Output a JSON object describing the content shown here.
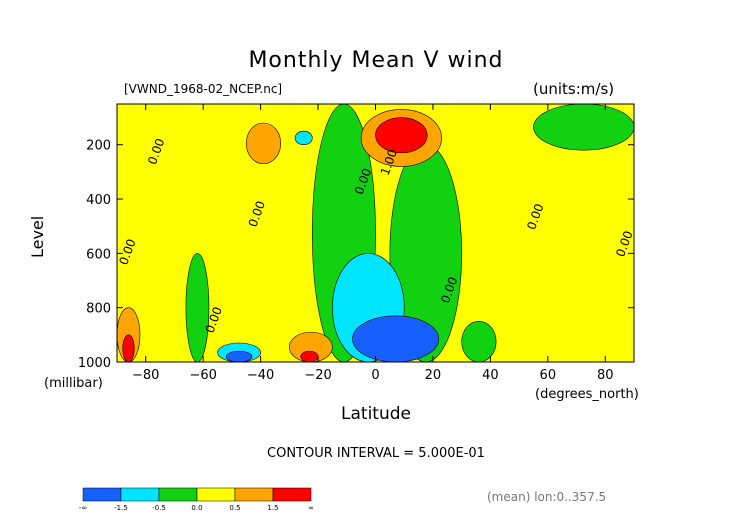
{
  "chart_data": {
    "type": "contour",
    "title": "Monthly Mean V wind",
    "file_label": "[VWND_1968-02_NCEP.nc]",
    "units_label": "(units:m/s)",
    "xlabel": "Latitude",
    "x_units": "(degrees_north)",
    "ylabel": "Level",
    "y_units": "(millibar)",
    "xlim": [
      -90,
      90
    ],
    "ylim": [
      1000,
      50
    ],
    "x_ticks": [
      -80,
      -60,
      -40,
      -20,
      0,
      20,
      40,
      60,
      80
    ],
    "y_ticks": [
      200,
      400,
      600,
      800,
      1000
    ],
    "contour_interval_text": "CONTOUR INTERVAL = 5.000E-01",
    "footer_text": "(mean) lon:0..357.5",
    "contour_labels": [
      {
        "text": "0.00",
        "lat": -75,
        "lev": 230
      },
      {
        "text": "0.00",
        "lat": -40,
        "lev": 460
      },
      {
        "text": "0.00",
        "lat": -85,
        "lev": 600
      },
      {
        "text": "0.00",
        "lat": -55,
        "lev": 850
      },
      {
        "text": "1.00",
        "lat": 6,
        "lev": 270
      },
      {
        "text": "0.00",
        "lat": -3,
        "lev": 340
      },
      {
        "text": "0.00",
        "lat": 27,
        "lev": 740
      },
      {
        "text": "0.00",
        "lat": 57,
        "lev": 470
      },
      {
        "text": "0.00",
        "lat": 88,
        "lev": 570
      }
    ],
    "colorbar": {
      "colors": [
        "#1560ff",
        "#00e5ff",
        "#11d111",
        "#ffff00",
        "#ffa500",
        "#ff0000"
      ],
      "tick_labels": [
        "-∞",
        "-1.5",
        "-0.5",
        "0.0",
        "0.5",
        "1.5",
        "∞"
      ]
    },
    "regions": [
      {
        "level": "green",
        "lat": [
          -22,
          0
        ],
        "lev": [
          50,
          1000
        ]
      },
      {
        "level": "green",
        "lat": [
          5,
          30
        ],
        "lev": [
          200,
          1000
        ]
      },
      {
        "level": "green",
        "lat": [
          30,
          42
        ],
        "lev": [
          850,
          1000
        ]
      },
      {
        "level": "green",
        "lat": [
          -66,
          -58
        ],
        "lev": [
          600,
          1000
        ]
      },
      {
        "level": "green",
        "lat": [
          55,
          90
        ],
        "lev": [
          50,
          220
        ]
      },
      {
        "level": "orange",
        "lat": [
          -5,
          23
        ],
        "lev": [
          70,
          280
        ]
      },
      {
        "level": "red",
        "lat": [
          0,
          18
        ],
        "lev": [
          100,
          230
        ]
      },
      {
        "level": "orange",
        "lat": [
          -45,
          -33
        ],
        "lev": [
          120,
          270
        ]
      },
      {
        "level": "cyan",
        "lat": [
          -15,
          10
        ],
        "lev": [
          600,
          1000
        ]
      },
      {
        "level": "blue",
        "lat": [
          -8,
          22
        ],
        "lev": [
          830,
          1000
        ]
      },
      {
        "level": "cyan",
        "lat": [
          -55,
          -40
        ],
        "lev": [
          930,
          1000
        ]
      },
      {
        "level": "blue",
        "lat": [
          -52,
          -43
        ],
        "lev": [
          960,
          1000
        ]
      },
      {
        "level": "orange",
        "lat": [
          -30,
          -15
        ],
        "lev": [
          890,
          1000
        ]
      },
      {
        "level": "red",
        "lat": [
          -26,
          -20
        ],
        "lev": [
          960,
          1000
        ]
      },
      {
        "level": "orange",
        "lat": [
          -90,
          -82
        ],
        "lev": [
          800,
          1000
        ]
      },
      {
        "level": "red",
        "lat": [
          -88,
          -84
        ],
        "lev": [
          900,
          1000
        ]
      },
      {
        "level": "cyan",
        "lat": [
          -28,
          -22
        ],
        "lev": [
          150,
          200
        ]
      }
    ]
  }
}
